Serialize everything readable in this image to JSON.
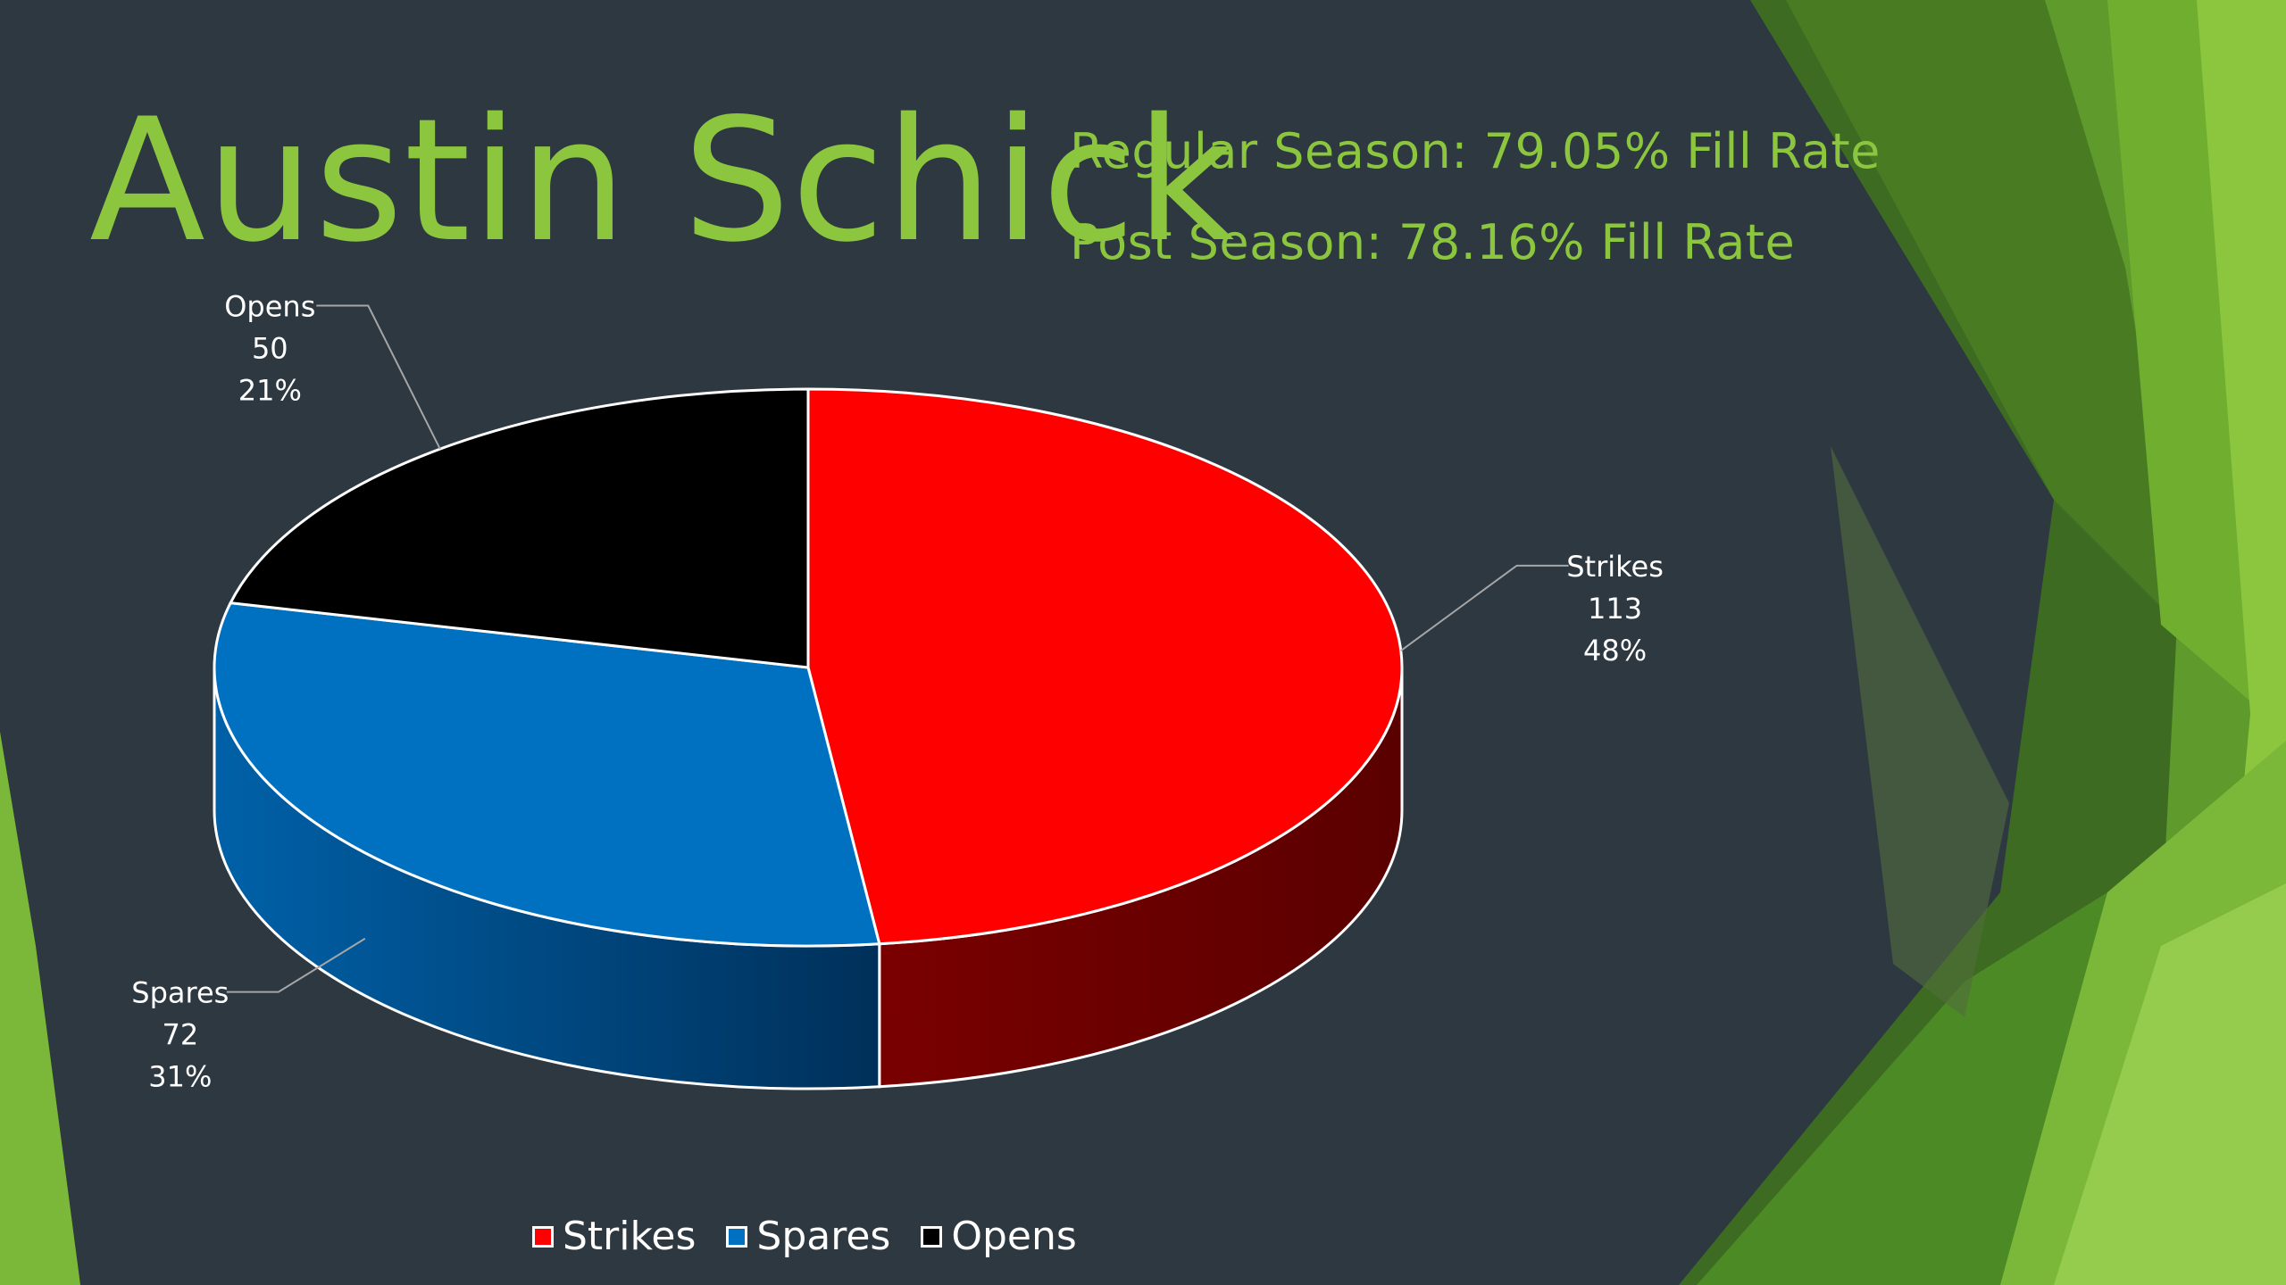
{
  "title": "Austin Schick",
  "stats": {
    "regular": "Regular Season: 79.05% Fill Rate",
    "post": "Post Season: 78.16% Fill Rate"
  },
  "colors": {
    "background": "#2d3841",
    "accent": "#8cc63f",
    "strikes": "#ff0000",
    "spares": "#0070c0",
    "opens": "#000000"
  },
  "chart_data": {
    "type": "pie",
    "title": "",
    "categories": [
      "Strikes",
      "Spares",
      "Opens"
    ],
    "values": [
      113,
      72,
      50
    ],
    "percent_labels": [
      "48%",
      "31%",
      "21%"
    ],
    "value_labels": [
      "113",
      "72",
      "50"
    ],
    "legend_position": "bottom",
    "style": "3d"
  },
  "legend": [
    {
      "label": "Strikes",
      "color": "#ff0000"
    },
    {
      "label": "Spares",
      "color": "#0070c0"
    },
    {
      "label": "Opens",
      "color": "#000000"
    }
  ]
}
